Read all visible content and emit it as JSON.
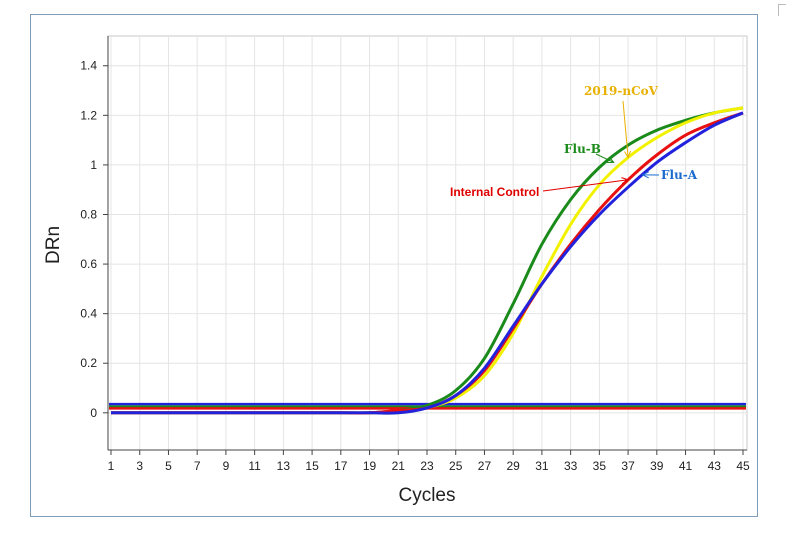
{
  "chart_data": {
    "type": "line",
    "xlabel": "Cycles",
    "ylabel": "DRn",
    "xlim": [
      1,
      45
    ],
    "ylim": [
      -0.15,
      1.52
    ],
    "x_ticks": [
      1,
      3,
      5,
      7,
      9,
      11,
      13,
      15,
      17,
      19,
      21,
      23,
      25,
      27,
      29,
      31,
      33,
      35,
      37,
      39,
      41,
      43,
      45
    ],
    "y_ticks": [
      0,
      0.2,
      0.4,
      0.6,
      0.8,
      1,
      1.2,
      1.4
    ],
    "y_tick_labels": [
      "0",
      "0.2",
      "0.4",
      "0.6",
      "0.8",
      "1",
      "1.2",
      "1.4"
    ],
    "grid": true,
    "x": [
      1,
      3,
      5,
      7,
      9,
      11,
      13,
      15,
      17,
      19,
      21,
      23,
      25,
      27,
      29,
      31,
      33,
      35,
      37,
      39,
      41,
      43,
      45
    ],
    "series": [
      {
        "name": "Flu-B",
        "color": "#1a8a1a",
        "values": [
          0,
          0,
          0,
          0,
          0,
          0,
          0,
          0,
          0,
          0,
          0.01,
          0.03,
          0.09,
          0.22,
          0.44,
          0.68,
          0.86,
          0.99,
          1.08,
          1.14,
          1.18,
          1.21,
          1.23
        ]
      },
      {
        "name": "2019-nCoV",
        "color": "#f2f200",
        "values": [
          0,
          0,
          0,
          0,
          0,
          0,
          0,
          0,
          0,
          0,
          0,
          0.02,
          0.06,
          0.15,
          0.32,
          0.55,
          0.76,
          0.92,
          1.03,
          1.11,
          1.17,
          1.21,
          1.23
        ]
      },
      {
        "name": "Internal Control",
        "color": "#e81010",
        "values": [
          0,
          0,
          0,
          0,
          0,
          0,
          0,
          0,
          0,
          0,
          0.01,
          0.02,
          0.07,
          0.17,
          0.34,
          0.52,
          0.68,
          0.82,
          0.94,
          1.04,
          1.12,
          1.17,
          1.21
        ]
      },
      {
        "name": "Flu-A",
        "color": "#2222dd",
        "values": [
          0,
          0,
          0,
          0,
          0,
          0,
          0,
          0,
          0,
          0,
          0,
          0.02,
          0.07,
          0.18,
          0.35,
          0.52,
          0.67,
          0.8,
          0.91,
          1.01,
          1.09,
          1.16,
          1.21
        ]
      }
    ],
    "thresholds": [
      {
        "value": 0.035,
        "color": "#2222dd"
      },
      {
        "value": 0.025,
        "color": "#1a8a1a"
      },
      {
        "value": 0.018,
        "color": "#e81010"
      }
    ],
    "annotations": [
      {
        "text": "2019-nCoV",
        "color": "#e8b000",
        "series": "2019-nCoV",
        "point": [
          37,
          1.03
        ]
      },
      {
        "text": "Flu-B",
        "color": "#1a8a1a",
        "series": "Flu-B",
        "point": [
          36,
          1.01
        ]
      },
      {
        "text": "Flu-A",
        "color": "#1a6ad0",
        "series": "Flu-A",
        "point": [
          38,
          0.96
        ]
      },
      {
        "text": "Internal  Control",
        "color": "#e00000",
        "series": "Internal Control",
        "point": [
          37,
          0.94
        ]
      }
    ]
  }
}
